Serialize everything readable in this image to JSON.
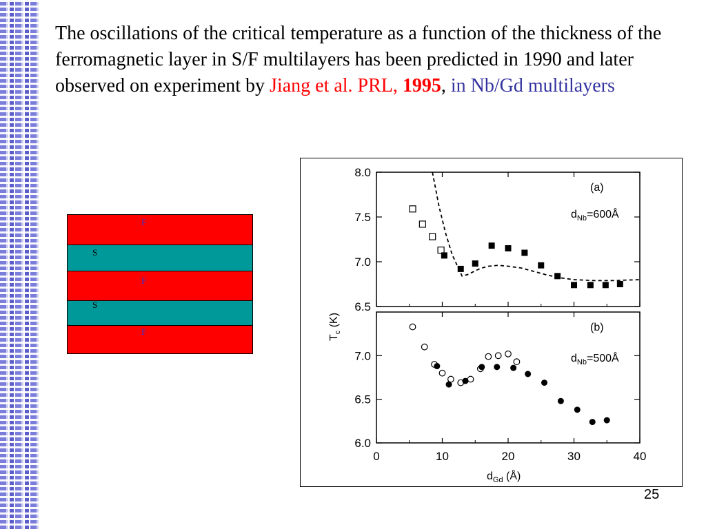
{
  "slide": {
    "text": {
      "part1": "The oscillations of the critical temperature as a function of the thickness of the ferromagnetic layer in S/F multilayers has been predicted  in 1990 and  later observed on experiment  by ",
      "red1": "Jiang et al. PRL, ",
      "red_bold": "1995",
      "comma": ",  ",
      "blue": "in Nb/Gd multilayers"
    },
    "page_number": "25",
    "colors": {
      "ferromagnet": "#ff0000",
      "superconductor": "#009999",
      "citation": "#ff0000",
      "material": "#3333a0"
    }
  },
  "multilayer": {
    "layers": [
      {
        "label": "F",
        "type": "ferromagnet"
      },
      {
        "label": "S",
        "type": "superconductor"
      },
      {
        "label": "F",
        "type": "ferromagnet"
      },
      {
        "label": "S",
        "type": "superconductor"
      },
      {
        "label": "F",
        "type": "ferromagnet"
      }
    ]
  },
  "chart_data": [
    {
      "type": "scatter",
      "panel_label": "(a)",
      "annotation": "d_Nb=600Å",
      "ylabel": "T_c (K)",
      "xlim": [
        0,
        40
      ],
      "ylim": [
        6.5,
        8.0
      ],
      "yticks": [
        "6.5",
        "7.0",
        "7.5",
        "8.0"
      ],
      "series": [
        {
          "marker": "open-square",
          "points": [
            [
              5.5,
              7.59
            ],
            [
              7,
              7.42
            ],
            [
              8.5,
              7.28
            ],
            [
              9.8,
              7.13
            ]
          ]
        },
        {
          "marker": "filled-square",
          "points": [
            [
              10.3,
              7.07
            ],
            [
              12.8,
              6.92
            ],
            [
              15,
              6.98
            ],
            [
              17.5,
              7.18
            ],
            [
              20,
              7.15
            ],
            [
              22.5,
              7.1
            ],
            [
              25,
              6.96
            ],
            [
              27.5,
              6.84
            ],
            [
              30,
              6.74
            ],
            [
              32.5,
              6.74
            ],
            [
              34.8,
              6.74
            ],
            [
              37,
              6.75
            ]
          ]
        },
        {
          "marker": "dashed-line",
          "points": [
            [
              8.5,
              8.0
            ],
            [
              9.5,
              7.62
            ],
            [
              10.5,
              7.32
            ],
            [
              11.5,
              7.08
            ],
            [
              12.5,
              6.92
            ],
            [
              13,
              6.84
            ],
            [
              14,
              6.86
            ],
            [
              15,
              6.9
            ],
            [
              16,
              6.93
            ],
            [
              17,
              6.95
            ],
            [
              18.5,
              6.96
            ],
            [
              20,
              6.95
            ],
            [
              22,
              6.93
            ],
            [
              24,
              6.89
            ],
            [
              26,
              6.85
            ],
            [
              28,
              6.82
            ],
            [
              30,
              6.8
            ],
            [
              33,
              6.79
            ],
            [
              36,
              6.79
            ],
            [
              40,
              6.8
            ]
          ]
        }
      ]
    },
    {
      "type": "scatter",
      "panel_label": "(b)",
      "annotation": "d_Nb=500Å",
      "xlabel": "d_Gd (Å)",
      "xlim": [
        0,
        40
      ],
      "ylim": [
        6.0,
        7.5
      ],
      "xticks": [
        "0",
        "10",
        "20",
        "30",
        "40"
      ],
      "yticks": [
        "6.0",
        "6.5",
        "7.0"
      ],
      "series": [
        {
          "marker": "open-circle",
          "points": [
            [
              5.5,
              7.33
            ],
            [
              7.3,
              7.1
            ],
            [
              8.8,
              6.9
            ],
            [
              10,
              6.8
            ],
            [
              11.3,
              6.73
            ],
            [
              12.8,
              6.69
            ],
            [
              14.3,
              6.73
            ],
            [
              15.8,
              6.85
            ],
            [
              17,
              6.99
            ],
            [
              18.5,
              7.0
            ],
            [
              20,
              7.02
            ],
            [
              21.3,
              6.93
            ]
          ]
        },
        {
          "marker": "filled-circle",
          "points": [
            [
              9.2,
              6.88
            ],
            [
              11,
              6.67
            ],
            [
              13.5,
              6.71
            ],
            [
              16,
              6.87
            ],
            [
              18.3,
              6.87
            ],
            [
              20.8,
              6.86
            ],
            [
              23,
              6.79
            ],
            [
              25.5,
              6.69
            ],
            [
              28,
              6.48
            ],
            [
              30.5,
              6.38
            ],
            [
              32.8,
              6.24
            ],
            [
              35,
              6.26
            ]
          ]
        }
      ]
    }
  ]
}
